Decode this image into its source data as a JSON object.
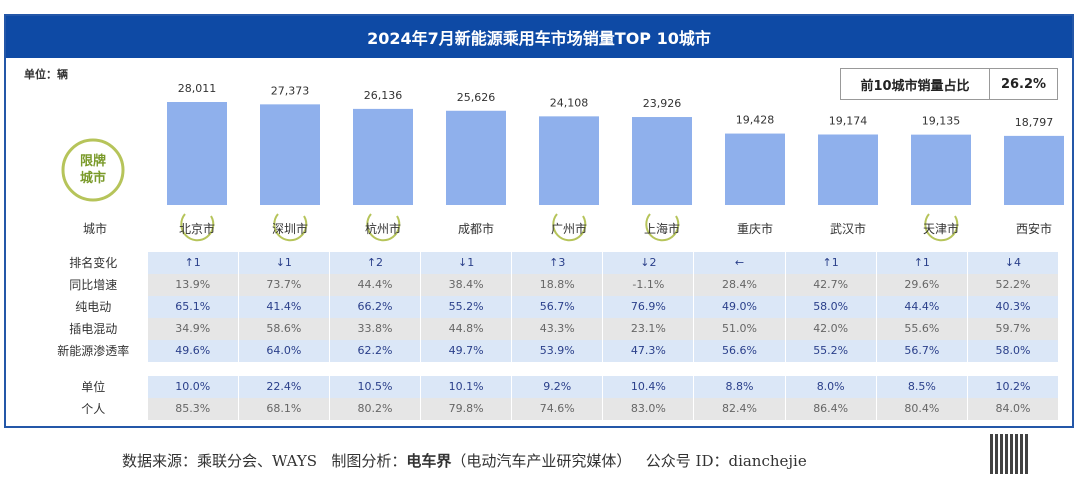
{
  "chart_data": {
    "type": "bar",
    "title": "2024年7月新能源乘用车市场销量TOP  10城市",
    "unit_label": "单位：辆",
    "categories": [
      "北京市",
      "深圳市",
      "杭州市",
      "成都市",
      "广州市",
      "上海市",
      "重庆市",
      "武汉市",
      "天津市",
      "西安市"
    ],
    "values": [
      28011,
      27373,
      26136,
      25626,
      24108,
      23926,
      19428,
      19174,
      19135,
      18797
    ],
    "value_labels": [
      "28,011",
      "27,373",
      "26,136",
      "25,626",
      "24,108",
      "23,926",
      "19,428",
      "19,174",
      "19,135",
      "18,797"
    ],
    "limited_cities": [
      "北京市",
      "深圳市",
      "杭州市",
      "广州市",
      "上海市",
      "天津市"
    ],
    "limited_label": "限牌城市",
    "city_row_label": "城市",
    "share_label": "前10城市销量占比",
    "share_value": "26.2%",
    "bar_color": "#8fb0ec",
    "table": [
      {
        "label": "排名变化",
        "style": "blue",
        "values": [
          "↑1",
          "↓1",
          "↑2",
          "↓1",
          "↑3",
          "↓2",
          "←",
          "↑1",
          "↑1",
          "↓4"
        ]
      },
      {
        "label": "同比增速",
        "style": "gray",
        "values": [
          "13.9%",
          "73.7%",
          "44.4%",
          "38.4%",
          "18.8%",
          "-1.1%",
          "28.4%",
          "42.7%",
          "29.6%",
          "52.2%"
        ]
      },
      {
        "label": "纯电动",
        "style": "blue",
        "values": [
          "65.1%",
          "41.4%",
          "66.2%",
          "55.2%",
          "56.7%",
          "76.9%",
          "49.0%",
          "58.0%",
          "44.4%",
          "40.3%"
        ]
      },
      {
        "label": "插电混动",
        "style": "gray",
        "values": [
          "34.9%",
          "58.6%",
          "33.8%",
          "44.8%",
          "43.3%",
          "23.1%",
          "51.0%",
          "42.0%",
          "55.6%",
          "59.7%"
        ]
      },
      {
        "label": "新能源渗透率",
        "style": "blue",
        "values": [
          "49.6%",
          "64.0%",
          "62.2%",
          "49.7%",
          "53.9%",
          "47.3%",
          "56.6%",
          "55.2%",
          "56.7%",
          "58.0%"
        ]
      },
      {
        "label": "单位",
        "style": "blue",
        "values": [
          "10.0%",
          "22.4%",
          "10.5%",
          "10.1%",
          "9.2%",
          "10.4%",
          "8.8%",
          "8.0%",
          "8.5%",
          "10.2%"
        ]
      },
      {
        "label": "个人",
        "style": "gray",
        "values": [
          "85.3%",
          "68.1%",
          "80.2%",
          "79.8%",
          "74.6%",
          "83.0%",
          "82.4%",
          "86.4%",
          "80.4%",
          "84.0%"
        ]
      }
    ]
  },
  "footer": {
    "source": "数据来源：乘联分会、WAYS",
    "analysis_label": "制图分析：",
    "brand": "电车界",
    "brand_desc": "（电动汽车产业研究媒体）",
    "account": "公众号 ID：dianchejie"
  }
}
